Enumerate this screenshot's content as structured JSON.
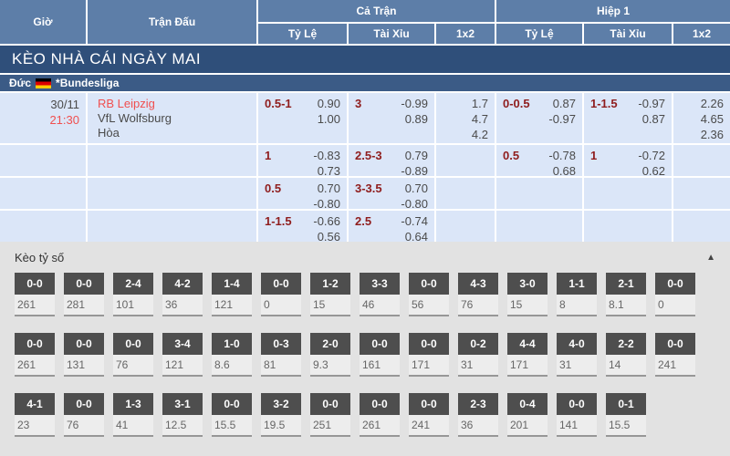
{
  "table": {
    "headers": {
      "time": "Giờ",
      "match": "Trận Đấu",
      "full_time": "Cả Trận",
      "first_half": "Hiệp 1",
      "handicap": "Tỷ Lệ",
      "over_under": "Tài Xỉu",
      "one_x_two": "1x2"
    },
    "banner": "KÈO NHÀ CÁI NGÀY MAI",
    "league": {
      "country": "Đức",
      "flag": "germany-flag-icon",
      "name": "*Bundesliga"
    },
    "match": {
      "date": "30/11",
      "time": "21:30",
      "home": "RB Leipzig",
      "away": "VfL Wolfsburg",
      "draw": "Hòa"
    },
    "odds_rows": [
      {
        "ft_hcp": "0.5-1",
        "ft_hcp_odds": [
          "0.90",
          "1.00"
        ],
        "ft_ou": "3",
        "ft_ou_odds": [
          "-0.99",
          "0.89"
        ],
        "ft_1x2": [
          "1.7",
          "4.7",
          "4.2"
        ],
        "h1_hcp": "0-0.5",
        "h1_hcp_odds": [
          "0.87",
          "-0.97"
        ],
        "h1_ou": "1-1.5",
        "h1_ou_odds": [
          "-0.97",
          "0.87"
        ],
        "h1_1x2": [
          "2.26",
          "4.65",
          "2.36"
        ]
      },
      {
        "ft_hcp": "1",
        "ft_hcp_odds": [
          "-0.83",
          "0.73"
        ],
        "ft_ou": "2.5-3",
        "ft_ou_odds": [
          "0.79",
          "-0.89"
        ],
        "ft_1x2": [],
        "h1_hcp": "0.5",
        "h1_hcp_odds": [
          "-0.78",
          "0.68"
        ],
        "h1_ou": "1",
        "h1_ou_odds": [
          "-0.72",
          "0.62"
        ],
        "h1_1x2": []
      },
      {
        "ft_hcp": "0.5",
        "ft_hcp_odds": [
          "0.70",
          "-0.80"
        ],
        "ft_ou": "3-3.5",
        "ft_ou_odds": [
          "0.70",
          "-0.80"
        ],
        "ft_1x2": [],
        "h1_hcp": "",
        "h1_hcp_odds": [],
        "h1_ou": "",
        "h1_ou_odds": [],
        "h1_1x2": []
      },
      {
        "ft_hcp": "1-1.5",
        "ft_hcp_odds": [
          "-0.66",
          "0.56"
        ],
        "ft_ou": "2.5",
        "ft_ou_odds": [
          "-0.74",
          "0.64"
        ],
        "ft_1x2": [],
        "h1_hcp": "",
        "h1_hcp_odds": [],
        "h1_ou": "",
        "h1_ou_odds": [],
        "h1_1x2": []
      }
    ]
  },
  "score_board": {
    "title": "Kèo tỷ số",
    "collapse_icon": "triangle-up-icon",
    "rows": [
      [
        {
          "score": "0-0",
          "odds": "261"
        },
        {
          "score": "0-0",
          "odds": "281"
        },
        {
          "score": "2-4",
          "odds": "101"
        },
        {
          "score": "4-2",
          "odds": "36"
        },
        {
          "score": "1-4",
          "odds": "121"
        },
        {
          "score": "0-0",
          "odds": "0"
        },
        {
          "score": "1-2",
          "odds": "15"
        },
        {
          "score": "3-3",
          "odds": "46"
        },
        {
          "score": "0-0",
          "odds": "56"
        },
        {
          "score": "4-3",
          "odds": "76"
        },
        {
          "score": "3-0",
          "odds": "15"
        },
        {
          "score": "1-1",
          "odds": "8"
        },
        {
          "score": "2-1",
          "odds": "8.1"
        },
        {
          "score": "0-0",
          "odds": "0"
        }
      ],
      [
        {
          "score": "0-0",
          "odds": "261"
        },
        {
          "score": "0-0",
          "odds": "131"
        },
        {
          "score": "0-0",
          "odds": "76"
        },
        {
          "score": "3-4",
          "odds": "121"
        },
        {
          "score": "1-0",
          "odds": "8.6"
        },
        {
          "score": "0-3",
          "odds": "81"
        },
        {
          "score": "2-0",
          "odds": "9.3"
        },
        {
          "score": "0-0",
          "odds": "161"
        },
        {
          "score": "0-0",
          "odds": "171"
        },
        {
          "score": "0-2",
          "odds": "31"
        },
        {
          "score": "4-4",
          "odds": "171"
        },
        {
          "score": "4-0",
          "odds": "31"
        },
        {
          "score": "2-2",
          "odds": "14"
        },
        {
          "score": "0-0",
          "odds": "241"
        }
      ],
      [
        {
          "score": "4-1",
          "odds": "23"
        },
        {
          "score": "0-0",
          "odds": "76"
        },
        {
          "score": "1-3",
          "odds": "41"
        },
        {
          "score": "3-1",
          "odds": "12.5"
        },
        {
          "score": "0-0",
          "odds": "15.5"
        },
        {
          "score": "3-2",
          "odds": "19.5"
        },
        {
          "score": "0-0",
          "odds": "251"
        },
        {
          "score": "0-0",
          "odds": "261"
        },
        {
          "score": "0-0",
          "odds": "241"
        },
        {
          "score": "2-3",
          "odds": "36"
        },
        {
          "score": "0-4",
          "odds": "201"
        },
        {
          "score": "0-0",
          "odds": "141"
        },
        {
          "score": "0-1",
          "odds": "15.5"
        }
      ]
    ]
  },
  "colors": {
    "header_blue": "#5d7ea8",
    "banner_blue": "#2f4f7a",
    "league_blue": "#3b5b86",
    "row_blue": "#dbe6f8",
    "handicap_red": "#8f1d1d",
    "highlight_red": "#f04f4f",
    "score_box_gray": "#4e4e4e",
    "section_gray": "#e2e2e2"
  }
}
